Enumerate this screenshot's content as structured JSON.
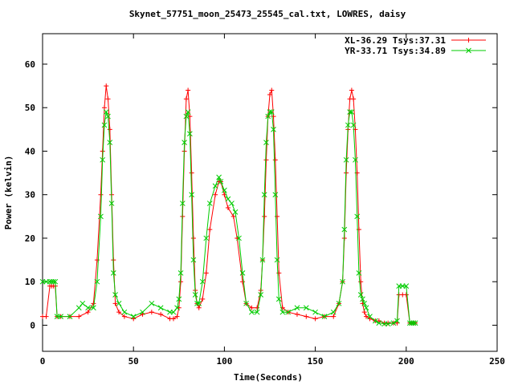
{
  "chart_data": {
    "type": "line",
    "title": "Skynet_57751_moon_25473_25545_cal.txt, LOWRES, daisy",
    "xlabel": "Time(Seconds)",
    "ylabel": "Power (kelvin)",
    "xlim": [
      0,
      250
    ],
    "ylim": [
      -6,
      67
    ],
    "xticks": [
      0,
      50,
      100,
      150,
      200,
      250
    ],
    "yticks": [
      0,
      10,
      20,
      30,
      40,
      50,
      60
    ],
    "grid": false,
    "legend_position": "top-right",
    "series": [
      {
        "name": "XL-36.29 Tsys:37.31",
        "color": "#ff0000",
        "marker": "plus",
        "x": [
          0,
          2,
          4,
          5,
          6,
          7,
          8,
          10,
          15,
          20,
          25,
          28,
          30,
          32,
          33,
          34,
          35,
          36,
          37,
          38,
          39,
          40,
          42,
          45,
          50,
          55,
          60,
          65,
          70,
          72,
          74,
          75,
          76,
          77,
          78,
          79,
          80,
          81,
          82,
          83,
          84,
          85,
          86,
          88,
          90,
          92,
          95,
          97,
          98,
          100,
          102,
          105,
          107,
          110,
          112,
          115,
          118,
          120,
          121,
          122,
          123,
          124,
          125,
          126,
          127,
          128,
          129,
          130,
          132,
          135,
          140,
          145,
          150,
          155,
          160,
          163,
          165,
          166,
          167,
          168,
          169,
          170,
          171,
          172,
          173,
          174,
          175,
          176,
          177,
          178,
          180,
          183,
          185,
          188,
          190,
          193,
          195,
          196,
          198,
          200,
          202,
          203,
          204,
          205
        ],
        "y": [
          2,
          2,
          9,
          9,
          9,
          9,
          2,
          2,
          2,
          2,
          3,
          5,
          15,
          30,
          40,
          50,
          55,
          52,
          45,
          30,
          15,
          5,
          3,
          2,
          1.5,
          2.5,
          3,
          2.5,
          1.5,
          1.5,
          2,
          4,
          10,
          25,
          40,
          52,
          54,
          48,
          35,
          20,
          8,
          5,
          4,
          6,
          12,
          22,
          30,
          33,
          33,
          30,
          27,
          25,
          20,
          10,
          5,
          4,
          4,
          8,
          15,
          25,
          38,
          48,
          53,
          54,
          48,
          38,
          25,
          12,
          4,
          3,
          2.5,
          2,
          1.5,
          2,
          2,
          5,
          10,
          20,
          35,
          45,
          52,
          54,
          52,
          45,
          35,
          22,
          10,
          5,
          3,
          2,
          1.5,
          1,
          1,
          0.5,
          0.5,
          0.5,
          0.5,
          7,
          7,
          7,
          0.5,
          0.5,
          0.5,
          0.5
        ]
      },
      {
        "name": "YR-33.71 Tsys:34.89",
        "color": "#00cc00",
        "marker": "cross",
        "x": [
          0,
          2,
          4,
          5,
          6,
          7,
          8,
          10,
          15,
          20,
          22,
          25,
          28,
          30,
          32,
          33,
          34,
          35,
          36,
          37,
          38,
          39,
          40,
          42,
          45,
          50,
          55,
          60,
          65,
          70,
          72,
          74,
          75,
          76,
          77,
          78,
          79,
          80,
          81,
          82,
          83,
          84,
          85,
          86,
          88,
          90,
          92,
          95,
          97,
          98,
          100,
          102,
          104,
          106,
          108,
          110,
          112,
          115,
          118,
          120,
          121,
          122,
          123,
          124,
          125,
          126,
          127,
          128,
          129,
          130,
          132,
          135,
          140,
          145,
          150,
          155,
          160,
          163,
          165,
          166,
          167,
          168,
          169,
          170,
          171,
          172,
          173,
          174,
          175,
          176,
          177,
          178,
          180,
          183,
          185,
          188,
          190,
          193,
          195,
          196,
          198,
          200,
          202,
          203,
          204,
          205
        ],
        "y": [
          10,
          10,
          10,
          10,
          10,
          10,
          2,
          2,
          2,
          4,
          5,
          4,
          4,
          10,
          25,
          38,
          46,
          49,
          48,
          42,
          28,
          12,
          7,
          5,
          3,
          2,
          3,
          5,
          4,
          3,
          3,
          4,
          6,
          12,
          28,
          42,
          48,
          49,
          44,
          30,
          15,
          7,
          5,
          5,
          10,
          20,
          28,
          32,
          34,
          33,
          31,
          29,
          28,
          26,
          20,
          12,
          5,
          3,
          3,
          7,
          15,
          30,
          42,
          48,
          49,
          49,
          45,
          30,
          15,
          6,
          3,
          3,
          4,
          4,
          3,
          2,
          3,
          5,
          10,
          22,
          38,
          46,
          49,
          49,
          46,
          38,
          25,
          12,
          7,
          6,
          5,
          4,
          2,
          1,
          0.5,
          0.3,
          0.3,
          0.5,
          1,
          9,
          9,
          9,
          0.5,
          0.5,
          0.5,
          0.5
        ]
      }
    ]
  }
}
